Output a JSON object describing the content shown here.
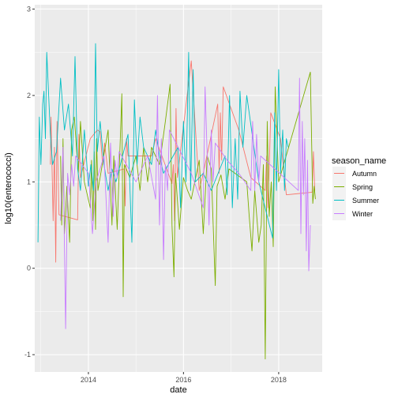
{
  "chart_data": {
    "type": "line",
    "xlabel": "date",
    "ylabel": "log10(enterococci)",
    "x_range": [
      "2012-11-15",
      "2018-12-01"
    ],
    "x_ticks": [
      {
        "date": "2014-01-01",
        "label": "2014"
      },
      {
        "date": "2016-01-01",
        "label": "2016"
      },
      {
        "date": "2018-01-01",
        "label": "2018"
      }
    ],
    "ylim": [
      -1.2,
      3.05
    ],
    "y_ticks": [
      -1,
      0,
      1,
      2,
      3
    ],
    "grid": true,
    "background": "#EBEBEB",
    "legend": {
      "title": "season_name",
      "position": "right"
    },
    "series": [
      {
        "name": "Autumn",
        "color": "#F8766D",
        "points": [
          [
            "2013-03-15",
            1.2
          ],
          [
            "2013-03-20",
            1.75
          ],
          [
            "2013-04-05",
            0.55
          ],
          [
            "2013-04-15",
            1.4
          ],
          [
            "2013-04-25",
            0.07
          ],
          [
            "2013-05-05",
            1.7
          ],
          [
            "2013-05-20",
            0.62
          ],
          [
            "2013-10-10",
            0.56
          ],
          [
            "2013-10-20",
            1.55
          ],
          [
            "2013-11-01",
            1.05
          ],
          [
            "2014-01-15",
            1.5
          ],
          [
            "2014-03-10",
            1.6
          ],
          [
            "2014-04-01",
            1.58
          ],
          [
            "2014-04-20",
            1.2
          ],
          [
            "2014-05-05",
            1.45
          ],
          [
            "2014-06-01",
            1.1
          ],
          [
            "2014-10-01",
            1.15
          ],
          [
            "2014-10-10",
            0.72
          ],
          [
            "2014-10-20",
            1.5
          ],
          [
            "2014-11-01",
            1.3
          ],
          [
            "2015-05-01",
            1.3
          ],
          [
            "2015-06-01",
            1.5
          ],
          [
            "2015-10-05",
            0.98
          ],
          [
            "2015-10-15",
            1.2
          ],
          [
            "2015-10-25",
            0.55
          ],
          [
            "2015-11-05",
            1.85
          ],
          [
            "2015-11-15",
            1.05
          ],
          [
            "2016-03-01",
            2.4
          ],
          [
            "2016-05-01",
            0.9
          ],
          [
            "2016-06-01",
            1.1
          ],
          [
            "2016-09-20",
            1.9
          ],
          [
            "2016-10-01",
            1.1
          ],
          [
            "2016-10-10",
            1.8
          ],
          [
            "2016-10-20",
            1.25
          ],
          [
            "2016-11-01",
            2.1
          ],
          [
            "2017-03-01",
            1.6
          ],
          [
            "2017-06-01",
            1.05
          ],
          [
            "2017-09-20",
            0.9
          ],
          [
            "2017-10-01",
            1.3
          ],
          [
            "2017-10-10",
            0.7
          ],
          [
            "2017-10-20",
            1.15
          ],
          [
            "2017-11-01",
            1.8
          ],
          [
            "2018-01-15",
            1.5
          ],
          [
            "2018-03-01",
            0.85
          ],
          [
            "2018-09-15",
            0.88
          ],
          [
            "2018-09-25",
            1.35
          ],
          [
            "2018-10-05",
            0.9
          ]
        ]
      },
      {
        "name": "Spring",
        "color": "#7CAE00",
        "points": [
          [
            "2013-06-01",
            1.3
          ],
          [
            "2013-06-10",
            0.5
          ],
          [
            "2013-06-20",
            1.5
          ],
          [
            "2013-07-01",
            0.4
          ],
          [
            "2013-07-20",
            0.95
          ],
          [
            "2013-08-10",
            0.3
          ],
          [
            "2013-08-25",
            1.6
          ],
          [
            "2013-09-15",
            1.75
          ],
          [
            "2013-10-15",
            1.1
          ],
          [
            "2013-11-01",
            1.7
          ],
          [
            "2013-12-01",
            1.0
          ],
          [
            "2014-01-15",
            0.7
          ],
          [
            "2014-01-25",
            1.25
          ],
          [
            "2014-02-05",
            0.55
          ],
          [
            "2014-02-15",
            1.35
          ],
          [
            "2014-02-25",
            0.45
          ],
          [
            "2014-03-05",
            1.5
          ],
          [
            "2014-03-15",
            0.9
          ],
          [
            "2014-06-01",
            1.6
          ],
          [
            "2014-07-01",
            0.5
          ],
          [
            "2014-07-15",
            1.3
          ],
          [
            "2014-08-10",
            0.45
          ],
          [
            "2014-09-15",
            2.02
          ],
          [
            "2014-09-25",
            -0.33
          ],
          [
            "2014-10-05",
            1.2
          ],
          [
            "2014-11-15",
            1.05
          ],
          [
            "2015-01-01",
            1.3
          ],
          [
            "2015-02-01",
            0.9
          ],
          [
            "2015-03-01",
            1.4
          ],
          [
            "2015-04-01",
            1.0
          ],
          [
            "2015-05-01",
            1.4
          ],
          [
            "2015-07-01",
            1.2
          ],
          [
            "2015-08-15",
            1.7
          ],
          [
            "2015-09-20",
            2.13
          ],
          [
            "2015-10-05",
            0.5
          ],
          [
            "2015-10-20",
            -0.1
          ],
          [
            "2015-11-01",
            1.1
          ],
          [
            "2015-12-01",
            0.45
          ],
          [
            "2016-01-01",
            1.05
          ],
          [
            "2016-02-01",
            0.9
          ],
          [
            "2016-03-01",
            0.8
          ],
          [
            "2016-05-01",
            1.25
          ],
          [
            "2016-06-01",
            0.4
          ],
          [
            "2016-07-01",
            1.3
          ],
          [
            "2016-08-01",
            1.15
          ],
          [
            "2016-09-01",
            -0.2
          ],
          [
            "2016-09-15",
            0.95
          ],
          [
            "2016-10-15",
            1.08
          ],
          [
            "2016-11-15",
            0.8
          ],
          [
            "2016-12-15",
            1.15
          ],
          [
            "2017-05-01",
            1.0
          ],
          [
            "2017-05-20",
            0.6
          ],
          [
            "2017-06-10",
            0.2
          ],
          [
            "2017-07-01",
            0.9
          ],
          [
            "2017-08-01",
            0.3
          ],
          [
            "2017-08-20",
            0.5
          ],
          [
            "2017-09-05",
            1.2
          ],
          [
            "2017-09-20",
            -1.05
          ],
          [
            "2017-10-05",
            1.7
          ],
          [
            "2017-10-20",
            0.6
          ],
          [
            "2017-11-05",
            1.0
          ],
          [
            "2017-11-20",
            0.25
          ],
          [
            "2017-12-05",
            2.1
          ],
          [
            "2018-01-01",
            1.0
          ],
          [
            "2018-09-01",
            2.27
          ],
          [
            "2018-09-20",
            0.75
          ],
          [
            "2018-10-01",
            0.95
          ],
          [
            "2018-10-10",
            0.8
          ]
        ]
      },
      {
        "name": "Summer",
        "color": "#00BFC4",
        "points": [
          [
            "2012-12-10",
            0.3
          ],
          [
            "2012-12-20",
            1.75
          ],
          [
            "2013-01-01",
            1.2
          ],
          [
            "2013-01-15",
            1.9
          ],
          [
            "2013-01-25",
            2.05
          ],
          [
            "2013-02-05",
            1.5
          ],
          [
            "2013-02-15",
            2.5
          ],
          [
            "2013-03-15",
            1.55
          ],
          [
            "2013-04-01",
            1.2
          ],
          [
            "2013-05-01",
            1.35
          ],
          [
            "2013-06-01",
            2.2
          ],
          [
            "2013-07-01",
            1.6
          ],
          [
            "2013-08-01",
            1.9
          ],
          [
            "2013-09-01",
            1.3
          ],
          [
            "2013-09-20",
            2.45
          ],
          [
            "2013-10-10",
            1.15
          ],
          [
            "2013-11-01",
            0.9
          ],
          [
            "2013-12-01",
            1.6
          ],
          [
            "2014-01-01",
            0.95
          ],
          [
            "2014-01-20",
            1.2
          ],
          [
            "2014-02-10",
            0.9
          ],
          [
            "2014-02-25",
            2.6
          ],
          [
            "2014-03-10",
            1.35
          ],
          [
            "2014-04-01",
            1.7
          ],
          [
            "2014-05-01",
            1.2
          ],
          [
            "2014-06-01",
            0.9
          ],
          [
            "2014-07-01",
            1.15
          ],
          [
            "2014-08-01",
            1.0
          ],
          [
            "2014-11-01",
            1.55
          ],
          [
            "2014-12-01",
            0.3
          ],
          [
            "2014-12-20",
            1.95
          ],
          [
            "2015-01-10",
            1.2
          ],
          [
            "2015-02-01",
            1.75
          ],
          [
            "2015-03-01",
            1.4
          ],
          [
            "2015-05-01",
            1.2
          ],
          [
            "2015-06-01",
            1.6
          ],
          [
            "2015-07-01",
            1.3
          ],
          [
            "2015-08-01",
            1.1
          ],
          [
            "2015-11-20",
            1.4
          ],
          [
            "2015-12-10",
            0.7
          ],
          [
            "2016-01-01",
            1.7
          ],
          [
            "2016-01-20",
            1.0
          ],
          [
            "2016-02-10",
            2.5
          ],
          [
            "2016-02-25",
            0.9
          ],
          [
            "2016-03-15",
            2.3
          ],
          [
            "2016-04-01",
            1.0
          ],
          [
            "2016-06-01",
            1.1
          ],
          [
            "2016-08-01",
            0.9
          ],
          [
            "2016-11-15",
            1.3
          ],
          [
            "2016-12-01",
            0.85
          ],
          [
            "2016-12-20",
            2.0
          ],
          [
            "2017-01-10",
            0.7
          ],
          [
            "2017-02-01",
            1.5
          ],
          [
            "2017-02-20",
            0.8
          ],
          [
            "2017-03-10",
            2.05
          ],
          [
            "2017-04-01",
            1.4
          ],
          [
            "2017-05-01",
            2.0
          ],
          [
            "2017-08-01",
            1.0
          ],
          [
            "2017-11-15",
            0.35
          ],
          [
            "2017-12-01",
            1.8
          ],
          [
            "2017-12-15",
            0.9
          ],
          [
            "2018-01-01",
            2.3
          ],
          [
            "2018-01-15",
            1.1
          ],
          [
            "2018-02-01",
            1.6
          ],
          [
            "2018-02-15",
            0.9
          ],
          [
            "2018-03-01",
            1.5
          ],
          [
            "2018-03-15",
            1.4
          ]
        ]
      },
      {
        "name": "Winter",
        "color": "#C77CFF",
        "points": [
          [
            "2013-06-01",
            0.55
          ],
          [
            "2013-06-20",
            1.4
          ],
          [
            "2013-07-10",
            -0.7
          ],
          [
            "2013-07-25",
            1.1
          ],
          [
            "2013-08-10",
            0.85
          ],
          [
            "2013-08-25",
            1.2
          ],
          [
            "2013-09-10",
            0.95
          ],
          [
            "2013-09-25",
            1.3
          ],
          [
            "2014-01-01",
            1.1
          ],
          [
            "2014-02-01",
            0.4
          ],
          [
            "2014-03-01",
            1.0
          ],
          [
            "2014-05-01",
            1.3
          ],
          [
            "2014-06-01",
            0.3
          ],
          [
            "2014-06-20",
            1.45
          ],
          [
            "2014-07-10",
            0.6
          ],
          [
            "2014-07-25",
            1.25
          ],
          [
            "2014-08-10",
            1.05
          ],
          [
            "2014-08-25",
            1.35
          ],
          [
            "2015-01-01",
            1.0
          ],
          [
            "2015-04-01",
            1.3
          ],
          [
            "2015-06-01",
            0.8
          ],
          [
            "2015-06-15",
            2.0
          ],
          [
            "2015-07-01",
            0.5
          ],
          [
            "2015-07-15",
            1.5
          ],
          [
            "2015-08-01",
            0.1
          ],
          [
            "2015-08-15",
            1.2
          ],
          [
            "2015-09-01",
            0.9
          ],
          [
            "2015-09-15",
            1.6
          ],
          [
            "2016-03-01",
            1.1
          ],
          [
            "2016-06-01",
            0.7
          ],
          [
            "2016-06-15",
            2.1
          ],
          [
            "2016-07-01",
            1.3
          ],
          [
            "2016-07-15",
            0.5
          ],
          [
            "2016-08-01",
            1.6
          ],
          [
            "2016-08-15",
            1.0
          ],
          [
            "2016-09-01",
            1.45
          ],
          [
            "2016-12-01",
            1.25
          ],
          [
            "2017-03-01",
            1.1
          ],
          [
            "2017-06-01",
            0.9
          ],
          [
            "2017-06-15",
            1.7
          ],
          [
            "2017-07-01",
            0.9
          ],
          [
            "2017-07-15",
            1.55
          ],
          [
            "2017-08-01",
            1.0
          ],
          [
            "2017-08-15",
            1.3
          ],
          [
            "2018-06-01",
            0.9
          ],
          [
            "2018-06-10",
            2.2
          ],
          [
            "2018-06-20",
            0.4
          ],
          [
            "2018-07-01",
            1.7
          ],
          [
            "2018-07-10",
            0.85
          ],
          [
            "2018-07-20",
            1.5
          ],
          [
            "2018-08-01",
            0.2
          ],
          [
            "2018-08-10",
            1.25
          ],
          [
            "2018-08-20",
            -0.03
          ],
          [
            "2018-09-01",
            0.5
          ]
        ]
      }
    ]
  }
}
